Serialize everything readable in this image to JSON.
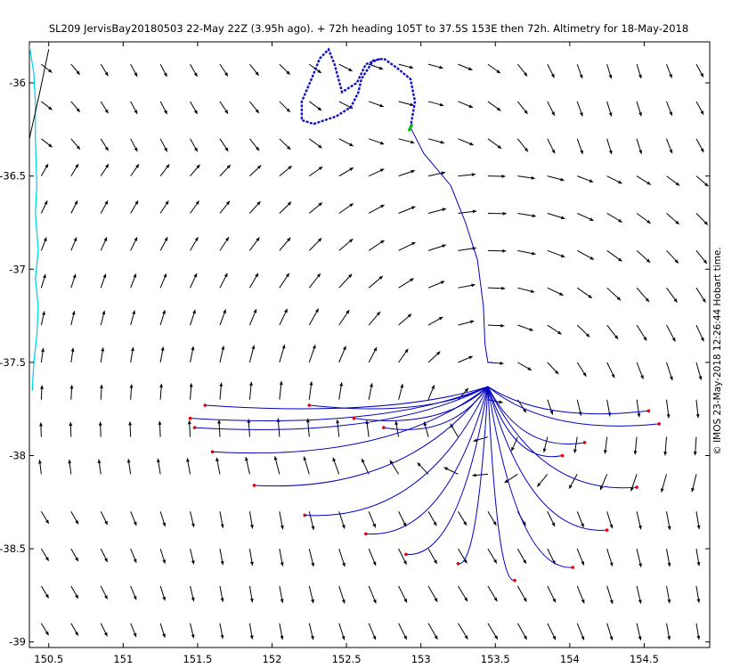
{
  "chart_data": {
    "type": "vector-field",
    "title": "SL209 JervisBay20180503 22-May 22Z (3.95h ago). + 72h heading 105T to 37.5S 153E then 72h. Altimetry for 18-May-2018",
    "credit": "© IMOS 23-May-2018 12:26:44 Hobart time.",
    "xlim": [
      150.37,
      154.94
    ],
    "ylim": [
      -39.03,
      -35.78
    ],
    "x_ticks": [
      {
        "value": 150.5,
        "label": "150.5"
      },
      {
        "value": 151,
        "label": "151"
      },
      {
        "value": 151.5,
        "label": "151.5"
      },
      {
        "value": 152,
        "label": "152"
      },
      {
        "value": 152.5,
        "label": "152.5"
      },
      {
        "value": 153,
        "label": "153"
      },
      {
        "value": 153.5,
        "label": "153.5"
      },
      {
        "value": 154,
        "label": "154"
      },
      {
        "value": 154.5,
        "label": "154.5"
      }
    ],
    "y_ticks": [
      {
        "value": -36,
        "label": "-36"
      },
      {
        "value": -36.5,
        "label": "-36.5"
      },
      {
        "value": -37,
        "label": "-37"
      },
      {
        "value": -37.5,
        "label": "-37.5"
      },
      {
        "value": -38,
        "label": "-38"
      },
      {
        "value": -38.5,
        "label": "-38.5"
      },
      {
        "value": -39,
        "label": "-39"
      }
    ],
    "grid": false,
    "colors": {
      "arrows": "#000000",
      "glider_track": "#1010c8",
      "forecast_tracks": "#0000c0",
      "track_end": "#e00000",
      "current_position": "#00c000",
      "coastline": "#00d8e8"
    },
    "field_center": [
      153.42,
      -37.82
    ],
    "coastline": [
      [
        150.37,
        -35.8
      ],
      [
        150.4,
        -35.95
      ],
      [
        150.41,
        -36.1
      ],
      [
        150.41,
        -36.3
      ],
      [
        150.42,
        -36.55
      ],
      [
        150.41,
        -36.7
      ],
      [
        150.43,
        -36.9
      ],
      [
        150.41,
        -37.05
      ],
      [
        150.43,
        -37.2
      ],
      [
        150.42,
        -37.35
      ],
      [
        150.4,
        -37.5
      ],
      [
        150.39,
        -37.65
      ]
    ],
    "land_edge": [
      [
        150.37,
        -36.3
      ],
      [
        150.44,
        -36.05
      ],
      [
        150.5,
        -35.82
      ]
    ],
    "glider_track": [
      [
        152.93,
        -36.24
      ],
      [
        152.96,
        -36.1
      ],
      [
        152.93,
        -35.98
      ],
      [
        152.84,
        -35.92
      ],
      [
        152.75,
        -35.87
      ],
      [
        152.68,
        -35.88
      ],
      [
        152.6,
        -35.98
      ],
      [
        152.58,
        -36.05
      ],
      [
        152.53,
        -36.13
      ],
      [
        152.43,
        -36.18
      ],
      [
        152.28,
        -36.22
      ],
      [
        152.2,
        -36.2
      ],
      [
        152.2,
        -36.1
      ],
      [
        152.27,
        -35.97
      ],
      [
        152.32,
        -35.87
      ],
      [
        152.38,
        -35.82
      ],
      [
        152.42,
        -35.9
      ],
      [
        152.47,
        -36.05
      ],
      [
        152.57,
        -36.0
      ],
      [
        152.63,
        -35.9
      ],
      [
        152.73,
        -35.87
      ]
    ],
    "current_position": [
      152.93,
      -36.24
    ],
    "forecast_path": [
      [
        152.93,
        -36.24
      ],
      [
        153.02,
        -36.38
      ],
      [
        153.2,
        -36.55
      ],
      [
        153.3,
        -36.75
      ],
      [
        153.38,
        -36.95
      ],
      [
        153.42,
        -37.2
      ],
      [
        153.43,
        -37.4
      ],
      [
        153.45,
        -37.5
      ],
      [
        153.48,
        -37.5
      ]
    ],
    "branch_origin": [
      153.45,
      -37.63
    ],
    "branch_ends": [
      [
        151.55,
        -37.73
      ],
      [
        151.45,
        -37.8
      ],
      [
        151.48,
        -37.85
      ],
      [
        151.6,
        -37.98
      ],
      [
        151.88,
        -38.16
      ],
      [
        152.22,
        -38.32
      ],
      [
        152.25,
        -37.73
      ],
      [
        152.55,
        -37.8
      ],
      [
        152.75,
        -37.85
      ],
      [
        152.63,
        -38.42
      ],
      [
        152.9,
        -38.53
      ],
      [
        153.25,
        -38.58
      ],
      [
        153.63,
        -38.67
      ],
      [
        154.02,
        -38.6
      ],
      [
        154.25,
        -38.4
      ],
      [
        154.45,
        -38.17
      ],
      [
        154.6,
        -37.83
      ],
      [
        154.53,
        -37.76
      ],
      [
        154.1,
        -37.93
      ],
      [
        153.95,
        -38.0
      ]
    ]
  }
}
